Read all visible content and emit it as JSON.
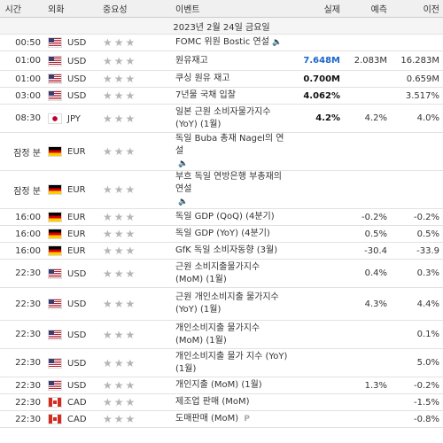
{
  "header": {
    "time": "시간",
    "currency": "외화",
    "importance": "중요성",
    "event": "이벤트",
    "actual": "실제",
    "forecast": "예측",
    "previous": "이전"
  },
  "date_label": "2023년 2월 24일 금요일",
  "rows": [
    {
      "time": "00:50",
      "cur": "USD",
      "flag": "usd",
      "stars": "★★★",
      "event": "FOMC 위원 Bostic 연설",
      "speaker": true,
      "actual": "",
      "forecast": "",
      "previous": ""
    },
    {
      "time": "01:00",
      "cur": "USD",
      "flag": "usd",
      "stars": "★★★",
      "event": "원유재고",
      "actual": "7.648M",
      "actual_style": "blue",
      "forecast": "2.083M",
      "previous": "16.283M"
    },
    {
      "time": "01:00",
      "cur": "USD",
      "flag": "usd",
      "stars": "★★★",
      "event": "쿠싱 원유 재고",
      "actual": "0.700M",
      "actual_style": "bold",
      "forecast": "",
      "previous": "0.659M"
    },
    {
      "time": "03:00",
      "cur": "USD",
      "flag": "usd",
      "stars": "★★★",
      "event": "7년물 국채 입찰",
      "actual": "4.062%",
      "actual_style": "bold",
      "forecast": "",
      "previous": "3.517%"
    },
    {
      "time": "08:30",
      "cur": "JPY",
      "flag": "jpy",
      "stars": "★★★",
      "event": "일본 근원 소비자물가지수 (YoY) (1월)",
      "actual": "4.2%",
      "actual_style": "bold",
      "forecast": "4.2%",
      "previous": "4.0%"
    },
    {
      "time": "잠정 분",
      "cur": "EUR",
      "flag": "eur",
      "stars": "★★★",
      "event": "독일 Buba 총재 Nagel의 연설",
      "speaker": true,
      "speaker_newline": true,
      "actual": "",
      "forecast": "",
      "previous": ""
    },
    {
      "time": "잠정 분",
      "cur": "EUR",
      "flag": "eur",
      "stars": "★★★",
      "event": "부흐 독일 연방은행 부총재의 연설",
      "speaker": true,
      "speaker_newline": true,
      "actual": "",
      "forecast": "",
      "previous": ""
    },
    {
      "time": "16:00",
      "cur": "EUR",
      "flag": "eur",
      "stars": "★★★",
      "event": "독일 GDP (QoQ) (4분기)",
      "actual": "",
      "forecast": "-0.2%",
      "previous": "-0.2%"
    },
    {
      "time": "16:00",
      "cur": "EUR",
      "flag": "eur",
      "stars": "★★★",
      "event": "독일 GDP (YoY) (4분기)",
      "actual": "",
      "forecast": "0.5%",
      "previous": "0.5%"
    },
    {
      "time": "16:00",
      "cur": "EUR",
      "flag": "eur",
      "stars": "★★★",
      "event": "GfK 독일 소비자동향 (3월)",
      "actual": "",
      "forecast": "-30.4",
      "previous": "-33.9"
    },
    {
      "time": "22:30",
      "cur": "USD",
      "flag": "usd",
      "stars": "★★★",
      "event": "근원 소비지출물가지수 (MoM) (1월)",
      "actual": "",
      "forecast": "0.4%",
      "previous": "0.3%"
    },
    {
      "time": "22:30",
      "cur": "USD",
      "flag": "usd",
      "stars": "★★★",
      "event": "근원 개인소비지출 물가지수 (YoY) (1월)",
      "actual": "",
      "forecast": "4.3%",
      "previous": "4.4%"
    },
    {
      "time": "22:30",
      "cur": "USD",
      "flag": "usd",
      "stars": "★★★",
      "event": "개인소비지출 물가지수 (MoM) (1월)",
      "actual": "",
      "forecast": "",
      "previous": "0.1%"
    },
    {
      "time": "22:30",
      "cur": "USD",
      "flag": "usd",
      "stars": "★★★",
      "event": "개인소비지출 물가 지수 (YoY) (1월)",
      "actual": "",
      "forecast": "",
      "previous": "5.0%"
    },
    {
      "time": "22:30",
      "cur": "USD",
      "flag": "usd",
      "stars": "★★★",
      "event": "개인지출 (MoM) (1월)",
      "actual": "",
      "forecast": "1.3%",
      "previous": "-0.2%"
    },
    {
      "time": "22:30",
      "cur": "CAD",
      "flag": "cad",
      "stars": "★★★",
      "event": "제조업 판매 (MoM)",
      "actual": "",
      "forecast": "",
      "previous": "-1.5%"
    },
    {
      "time": "22:30",
      "cur": "CAD",
      "flag": "cad",
      "stars": "★★★",
      "event": "도매판매 (MoM)",
      "prelim": "P",
      "actual": "",
      "forecast": "",
      "previous": "-0.8%"
    }
  ]
}
